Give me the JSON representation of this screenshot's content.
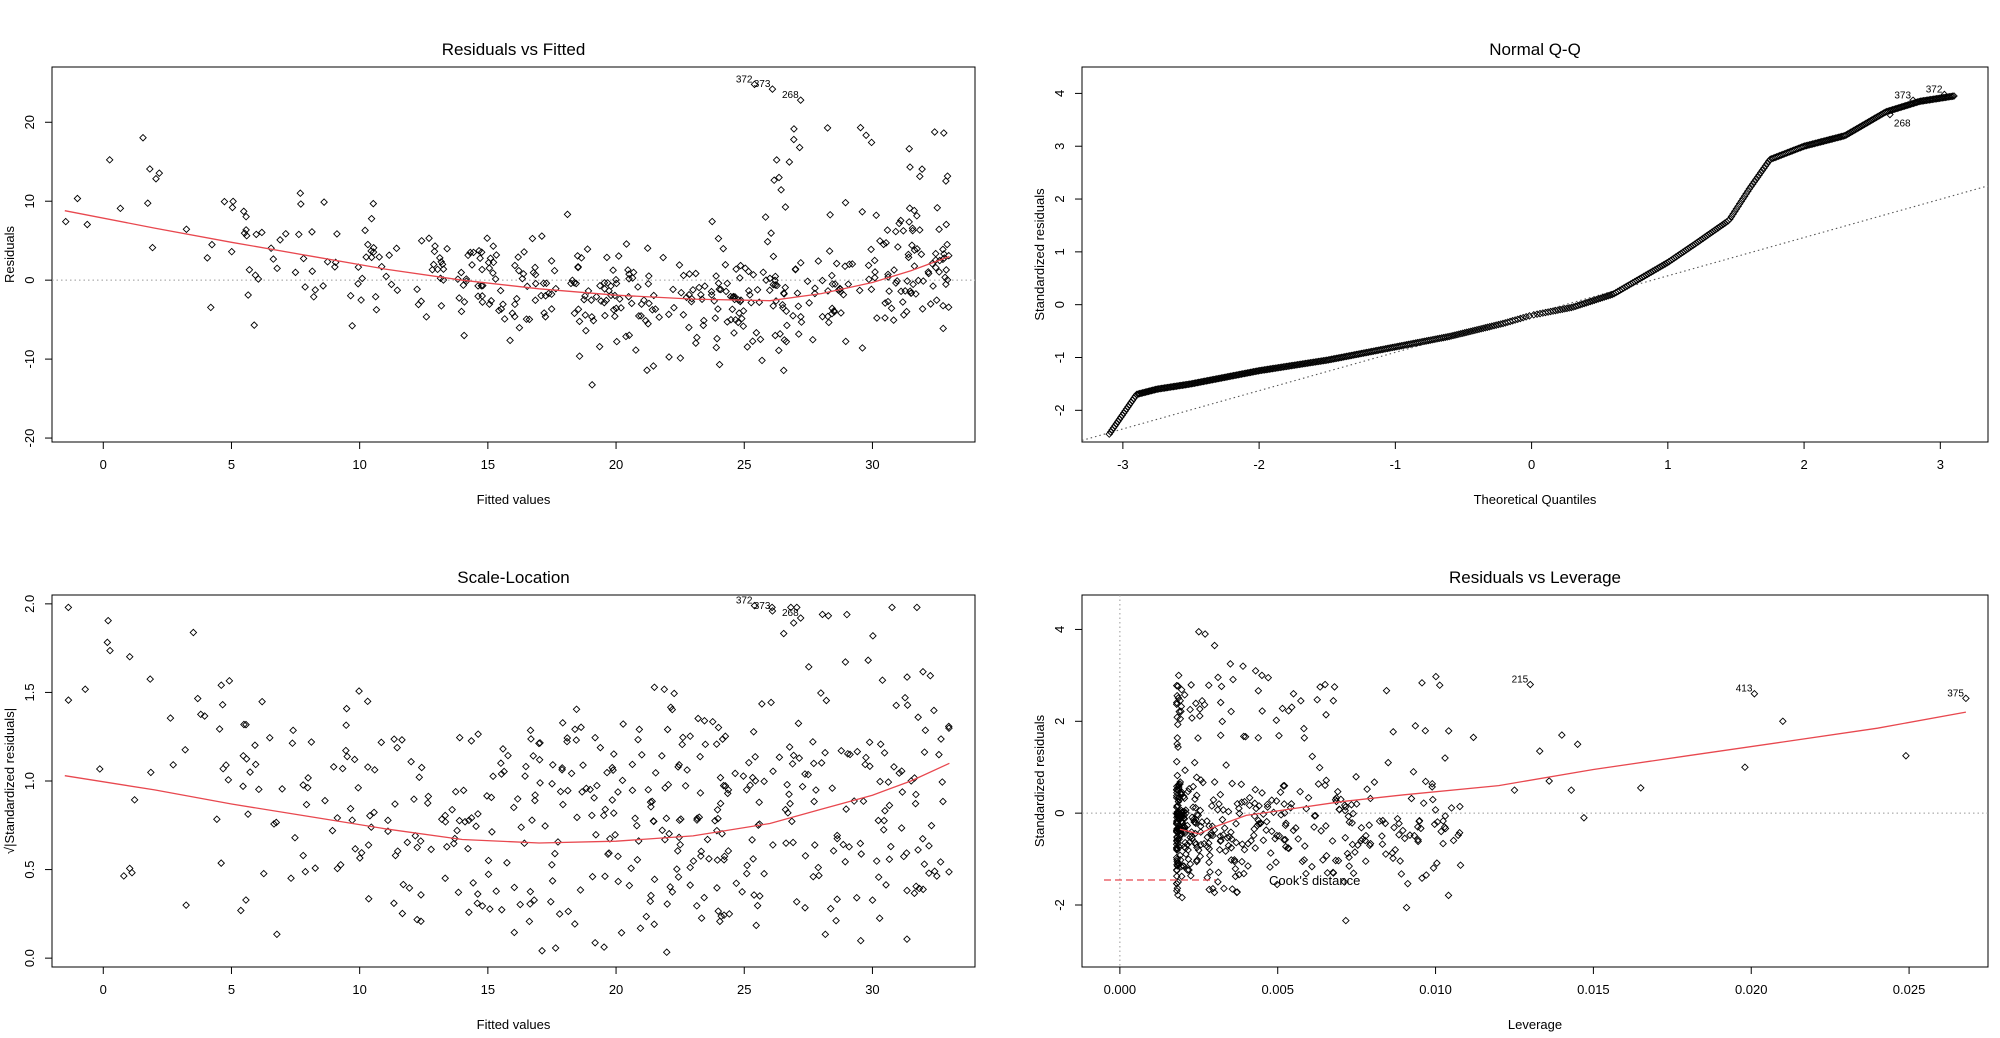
{
  "chart_data": [
    {
      "type": "scatter",
      "title": "Residuals vs Fitted",
      "xlabel": "Fitted values",
      "ylabel": "Residuals",
      "xlim": [
        -2,
        34
      ],
      "ylim": [
        -20.5,
        27
      ],
      "xticks": [
        0,
        5,
        10,
        15,
        20,
        25,
        30
      ],
      "yticks": [
        -20,
        -10,
        0,
        10,
        20
      ],
      "reference_line": {
        "axis": "y",
        "value": 0,
        "style": "dotted"
      },
      "smooth": {
        "color": "#e8484f",
        "x": [
          -1.5,
          2,
          5,
          8,
          11,
          14,
          17,
          20,
          23,
          26,
          28,
          30,
          31.5,
          33
        ],
        "y": [
          8.8,
          6.6,
          4.8,
          3.1,
          1.4,
          0.0,
          -1.1,
          -1.9,
          -2.4,
          -2.6,
          -1.7,
          -0.3,
          1.2,
          3.0
        ]
      },
      "annotations": [
        {
          "text": "372",
          "x": 25.4,
          "y": 24.8
        },
        {
          "text": "373",
          "x": 26.1,
          "y": 24.2
        },
        {
          "text": "268",
          "x": 27.2,
          "y": 22.8
        }
      ]
    },
    {
      "type": "scatter",
      "title": "Normal Q-Q",
      "xlabel": "Theoretical Quantiles",
      "ylabel": "Standardized residuals",
      "xlim": [
        -3.3,
        3.35
      ],
      "ylim": [
        -2.6,
        4.5
      ],
      "xticks": [
        -3,
        -2,
        -1,
        0,
        1,
        2,
        3
      ],
      "yticks": [
        -2,
        -1,
        0,
        1,
        2,
        3,
        4
      ],
      "reference_line": {
        "from": [
          -3.3,
          -2.57
        ],
        "to": [
          3.35,
          2.25
        ],
        "style": "dotted"
      },
      "quantile_curve": {
        "q": [
          -3.1,
          -2.9,
          -2.75,
          -2.5,
          -2.2,
          -2.0,
          -1.5,
          -1.0,
          -0.6,
          -0.2,
          0.0,
          0.3,
          0.6,
          0.8,
          1.0,
          1.2,
          1.45,
          1.6,
          1.75,
          2.0,
          2.3,
          2.6,
          2.85,
          3.1
        ],
        "r": [
          -2.45,
          -1.7,
          -1.6,
          -1.5,
          -1.35,
          -1.25,
          -1.05,
          -0.8,
          -0.6,
          -0.35,
          -0.2,
          -0.05,
          0.2,
          0.5,
          0.8,
          1.15,
          1.6,
          2.2,
          2.75,
          3.0,
          3.2,
          3.65,
          3.85,
          3.95
        ]
      },
      "annotations": [
        {
          "text": "268",
          "x": 2.63,
          "y": 3.6
        },
        {
          "text": "373",
          "x": 2.8,
          "y": 3.87
        },
        {
          "text": "372",
          "x": 3.03,
          "y": 3.98
        }
      ]
    },
    {
      "type": "scatter",
      "title": "Scale-Location",
      "xlabel": "Fitted values",
      "ylabel": "√|Standardized residuals|",
      "xlim": [
        -2,
        34
      ],
      "ylim": [
        -0.05,
        2.05
      ],
      "xticks": [
        0,
        5,
        10,
        15,
        20,
        25,
        30
      ],
      "yticks": [
        0.0,
        0.5,
        1.0,
        1.5,
        2.0
      ],
      "smooth": {
        "color": "#e8484f",
        "x": [
          -1.5,
          2,
          5,
          8,
          11,
          14,
          17,
          20,
          23,
          26,
          28,
          30,
          31.5,
          33
        ],
        "y": [
          1.03,
          0.95,
          0.87,
          0.8,
          0.73,
          0.67,
          0.65,
          0.66,
          0.69,
          0.76,
          0.84,
          0.92,
          1.0,
          1.1
        ]
      },
      "annotations": [
        {
          "text": "372",
          "x": 25.4,
          "y": 1.99
        },
        {
          "text": "373",
          "x": 26.1,
          "y": 1.96
        },
        {
          "text": "268",
          "x": 27.2,
          "y": 1.92
        }
      ]
    },
    {
      "type": "scatter",
      "title": "Residuals vs Leverage",
      "xlabel": "Leverage",
      "ylabel": "Standardized residuals",
      "xlim": [
        -0.0012,
        0.0275
      ],
      "ylim": [
        -3.35,
        4.75
      ],
      "xticks": [
        0.0,
        0.005,
        0.01,
        0.015,
        0.02,
        0.025
      ],
      "xtick_labels": [
        "0.000",
        "0.005",
        "0.010",
        "0.015",
        "0.020",
        "0.025"
      ],
      "yticks": [
        -2,
        0,
        2,
        4
      ],
      "reference_lines": [
        {
          "axis": "y",
          "value": 0,
          "style": "dotted"
        },
        {
          "axis": "x",
          "value": 0,
          "style": "dotted"
        }
      ],
      "smooth": {
        "color": "#e8484f",
        "x": [
          0.0019,
          0.0025,
          0.003,
          0.004,
          0.005,
          0.007,
          0.009,
          0.012,
          0.015,
          0.018,
          0.021,
          0.024,
          0.0268
        ],
        "y": [
          -0.35,
          -0.45,
          -0.3,
          -0.05,
          0.05,
          0.25,
          0.4,
          0.6,
          0.95,
          1.25,
          1.55,
          1.85,
          2.2
        ]
      },
      "legend": {
        "label": "Cook's distance",
        "placement": "bottom-left",
        "color": "#e8484f",
        "style": "dashed"
      },
      "annotations": [
        {
          "text": "215",
          "x": 0.013,
          "y": 2.8
        },
        {
          "text": "413",
          "x": 0.0201,
          "y": 2.6
        },
        {
          "text": "375",
          "x": 0.0268,
          "y": 2.5
        }
      ],
      "extra_points": {
        "x": [
          0.0025,
          0.0027,
          0.003,
          0.0035,
          0.0039,
          0.0043,
          0.0045,
          0.0047,
          0.0055,
          0.0065,
          0.0068,
          0.007,
          0.0075,
          0.0085,
          0.0093,
          0.0103,
          0.0112,
          0.0125,
          0.0133,
          0.0136,
          0.014,
          0.0143,
          0.0145,
          0.0147,
          0.0165,
          0.0198,
          0.021,
          0.0249
        ],
        "y": [
          3.95,
          3.9,
          3.65,
          3.25,
          3.2,
          3.1,
          3.0,
          2.95,
          2.6,
          2.8,
          2.75,
          0.3,
          0.2,
          1.1,
          0.9,
          1.2,
          1.65,
          0.5,
          1.35,
          0.7,
          1.7,
          0.5,
          1.5,
          -0.1,
          0.55,
          1.0,
          2.0,
          1.25
        ]
      }
    }
  ]
}
